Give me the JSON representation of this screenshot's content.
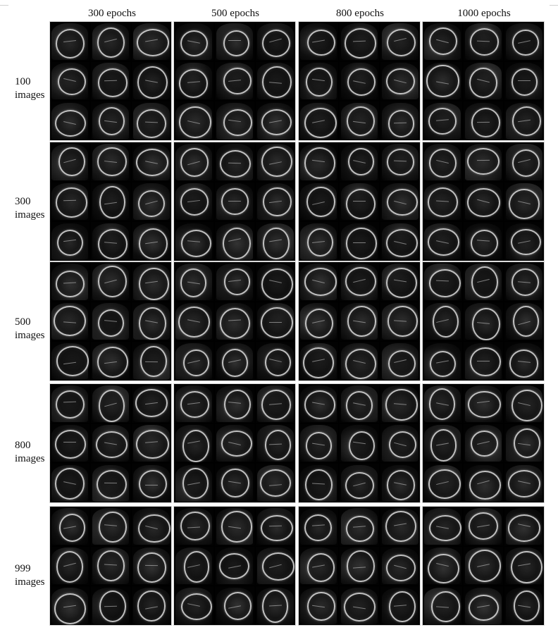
{
  "column_headers": [
    "300 epochs",
    "500 epochs",
    "800 epochs",
    "1000 epochs"
  ],
  "row_labels": [
    [
      "100",
      "images"
    ],
    [
      "300",
      "images"
    ],
    [
      "500",
      "images"
    ],
    [
      "800",
      "images"
    ],
    [
      "999",
      "images"
    ]
  ],
  "grid": {
    "rows": 5,
    "columns": 4,
    "tiles_per_panel": 9
  }
}
